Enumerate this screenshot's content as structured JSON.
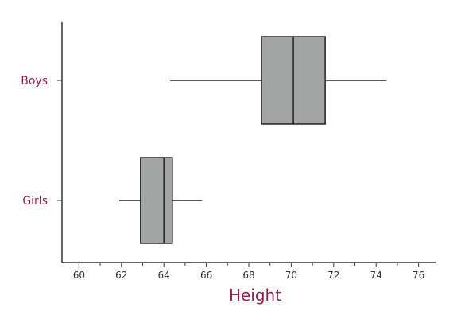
{
  "chart_data": {
    "type": "boxplot",
    "orientation": "horizontal",
    "title": "",
    "xlabel": "Height",
    "ylabel": "",
    "xlim": [
      59.2,
      76.8
    ],
    "xticks": [
      60,
      62,
      64,
      66,
      68,
      70,
      72,
      74,
      76
    ],
    "minor_tick_step": 1,
    "categories": [
      "Boys",
      "Girls"
    ],
    "boxes": [
      {
        "category": "Boys",
        "min": 64.3,
        "q1": 68.6,
        "median": 70.1,
        "q3": 71.6,
        "max": 74.5
      },
      {
        "category": "Girls",
        "min": 61.9,
        "q1": 62.9,
        "median": 64.0,
        "q3": 64.4,
        "max": 65.8
      }
    ],
    "grid": false,
    "legend": "none",
    "colors": {
      "box_fill": "#a3a5a4",
      "box_stroke": "#222222",
      "label_color": "#8e1f4e",
      "axis": "#333333"
    }
  }
}
